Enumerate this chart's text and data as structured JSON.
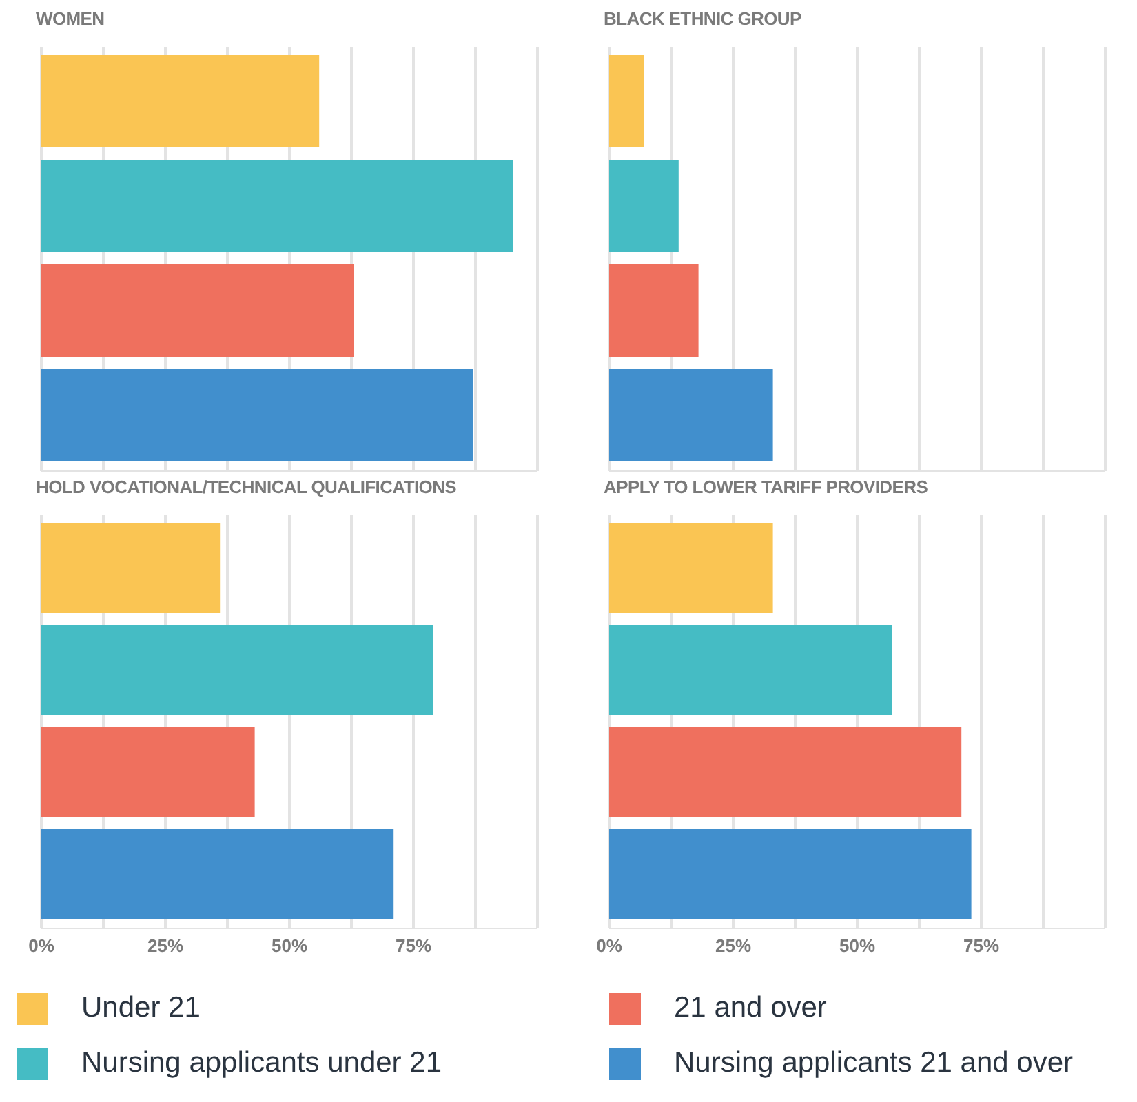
{
  "chart_data": [
    {
      "type": "bar",
      "orientation": "horizontal",
      "title": "WOMEN",
      "categories": [
        null
      ],
      "series": [
        {
          "color": "#fac553",
          "values": [
            56
          ]
        },
        {
          "color": "#45bcc4",
          "values": [
            95
          ]
        },
        {
          "color": "#ef705e",
          "values": [
            63
          ]
        },
        {
          "color": "#418fcd",
          "values": [
            87
          ]
        }
      ],
      "xlim": [
        0,
        100
      ],
      "xticks": [
        {
          "value": 0,
          "label": null
        },
        {
          "value": 12.5,
          "label": null
        },
        {
          "value": 25,
          "label": null
        },
        {
          "value": 37.5,
          "label": null
        },
        {
          "value": 50,
          "label": null
        },
        {
          "value": 62.5,
          "label": null
        },
        {
          "value": 75,
          "label": null
        },
        {
          "value": 87.5,
          "label": null
        }
      ],
      "grid": "x",
      "tick_labels": false
    },
    {
      "type": "bar",
      "orientation": "horizontal",
      "title": "BLACK ETHNIC GROUP",
      "categories": [
        null
      ],
      "series": [
        {
          "color": "#fac553",
          "values": [
            7
          ]
        },
        {
          "color": "#45bcc4",
          "values": [
            14
          ]
        },
        {
          "color": "#ef705e",
          "values": [
            18
          ]
        },
        {
          "color": "#418fcd",
          "values": [
            33
          ]
        }
      ],
      "xlim": [
        0,
        100
      ],
      "xticks": [
        {
          "value": 0,
          "label": null
        },
        {
          "value": 12.5,
          "label": null
        },
        {
          "value": 25,
          "label": null
        },
        {
          "value": 37.5,
          "label": null
        },
        {
          "value": 50,
          "label": null
        },
        {
          "value": 62.5,
          "label": null
        },
        {
          "value": 75,
          "label": null
        },
        {
          "value": 87.5,
          "label": null
        }
      ],
      "grid": "x",
      "tick_labels": false
    },
    {
      "type": "bar",
      "orientation": "horizontal",
      "title": "HOLD VOCATIONAL/TECHNICAL QUALIFICATIONS",
      "categories": [
        null
      ],
      "series": [
        {
          "name": "Under 21",
          "color": "#fac553",
          "values": [
            36
          ]
        },
        {
          "name": "Nursing applicants under 21",
          "color": "#45bcc4",
          "values": [
            79
          ]
        },
        {
          "name": "21 and over",
          "color": "#ef705e",
          "values": [
            43
          ]
        },
        {
          "name": "Nursing applicants 21 and over",
          "color": "#418fcd",
          "values": [
            71
          ]
        }
      ],
      "xlim": [
        0,
        100
      ],
      "xticks": [
        {
          "value": 0,
          "label": "0%"
        },
        {
          "value": 12.5,
          "label": null
        },
        {
          "value": 25,
          "label": "25%"
        },
        {
          "value": 37.5,
          "label": null
        },
        {
          "value": 50,
          "label": "50%"
        },
        {
          "value": 62.5,
          "label": null
        },
        {
          "value": 75,
          "label": "75%"
        },
        {
          "value": 87.5,
          "label": null
        }
      ],
      "grid": "x",
      "tick_labels": "x",
      "legend": "bottom"
    },
    {
      "type": "bar",
      "orientation": "horizontal",
      "title": "APPLY TO LOWER TARIFF PROVIDERS",
      "categories": [
        null
      ],
      "series": [
        {
          "color": "#fac553",
          "values": [
            33
          ]
        },
        {
          "color": "#45bcc4",
          "values": [
            57
          ]
        },
        {
          "color": "#ef705e",
          "values": [
            71
          ]
        },
        {
          "color": "#418fcd",
          "values": [
            73
          ]
        }
      ],
      "xlim": [
        0,
        100
      ],
      "xticks": [
        {
          "value": 0,
          "label": "0%"
        },
        {
          "value": 12.5,
          "label": null
        },
        {
          "value": 25,
          "label": "25%"
        },
        {
          "value": 37.5,
          "label": null
        },
        {
          "value": 50,
          "label": "50%"
        },
        {
          "value": 62.5,
          "label": null
        },
        {
          "value": 75,
          "label": "75%"
        },
        {
          "value": 87.5,
          "label": null
        }
      ],
      "grid": "x",
      "tick_labels": "x"
    }
  ]
}
